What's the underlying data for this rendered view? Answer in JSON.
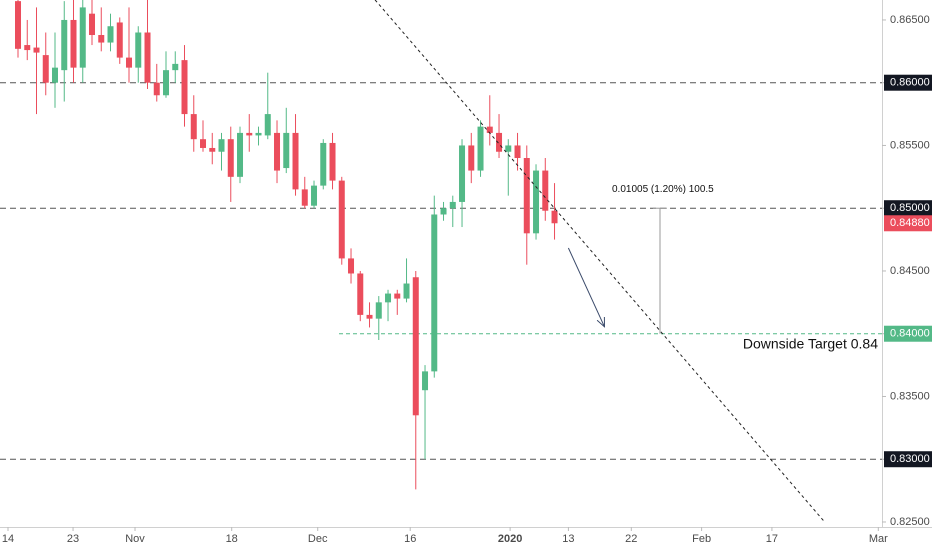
{
  "chart_data": {
    "type": "candlestick",
    "up_color": "#53b987",
    "down_color": "#eb4d5c",
    "xlim": [
      -1.946,
      93.4
    ],
    "ylim": [
      0.8246,
      0.86659
    ],
    "xticks": [
      {
        "value": -1.08,
        "label": "14"
      },
      {
        "value": 5.95,
        "label": "23"
      },
      {
        "value": 12.65,
        "label": "Nov"
      },
      {
        "value": 23.1,
        "label": "18"
      },
      {
        "value": 32.4,
        "label": "Dec"
      },
      {
        "value": 42.4,
        "label": "16"
      },
      {
        "value": 53.2,
        "label": "2020"
      },
      {
        "value": 59.5,
        "label": "13"
      },
      {
        "value": 66.3,
        "label": "22"
      },
      {
        "value": 73.9,
        "label": "Feb"
      },
      {
        "value": 81.5,
        "label": "17"
      },
      {
        "value": 93,
        "label": "Mar"
      }
    ],
    "yticks": [
      {
        "value": 0.865,
        "label": "0.86500"
      },
      {
        "value": 0.86,
        "label": "0.86000"
      },
      {
        "value": 0.855,
        "label": "0.85500"
      },
      {
        "value": 0.85,
        "label": "0.85000"
      },
      {
        "value": 0.845,
        "label": "0.84500"
      },
      {
        "value": 0.84,
        "label": "0.84000"
      },
      {
        "value": 0.835,
        "label": "0.83500"
      },
      {
        "value": 0.83,
        "label": "0.83000"
      },
      {
        "value": 0.825,
        "label": "0.82500"
      }
    ],
    "hlines": [
      0.86,
      0.85,
      0.83
    ],
    "last_price": {
      "value": 0.8488,
      "label": "0.84880"
    },
    "target": {
      "value": 0.84,
      "from": 34.7,
      "label": "Downside Target 0.84"
    },
    "trendline": {
      "x": [
        38.6,
        87.2
      ],
      "y": [
        0.8666,
        0.825
      ]
    },
    "arrow": {
      "x": [
        59.5,
        63.4
      ],
      "y": [
        0.84683,
        0.84055
      ]
    },
    "measure": {
      "x": 69.4,
      "y": [
        0.85,
        0.84
      ],
      "label": "0.01005 (1.20%) 100.5"
    },
    "candles": [
      [
        0.8665,
        0.868,
        0.862,
        0.8627
      ],
      [
        0.863,
        0.865,
        0.8618,
        0.8626
      ],
      [
        0.8628,
        0.866,
        0.8575,
        0.8624
      ],
      [
        0.8622,
        0.864,
        0.859,
        0.86
      ],
      [
        0.86,
        0.864,
        0.858,
        0.8612
      ],
      [
        0.861,
        0.8665,
        0.8585,
        0.865
      ],
      [
        0.865,
        0.867,
        0.86,
        0.8612
      ],
      [
        0.8612,
        0.868,
        0.86,
        0.866
      ],
      [
        0.8655,
        0.867,
        0.863,
        0.8638
      ],
      [
        0.8638,
        0.866,
        0.8625,
        0.8632
      ],
      [
        0.8632,
        0.8655,
        0.8625,
        0.8645
      ],
      [
        0.8648,
        0.8652,
        0.8615,
        0.862
      ],
      [
        0.862,
        0.866,
        0.86,
        0.8612
      ],
      [
        0.8612,
        0.8645,
        0.86,
        0.864
      ],
      [
        0.864,
        0.868,
        0.8595,
        0.86
      ],
      [
        0.86,
        0.8615,
        0.8585,
        0.859
      ],
      [
        0.859,
        0.8625,
        0.8588,
        0.861
      ],
      [
        0.861,
        0.8625,
        0.86,
        0.8615
      ],
      [
        0.8618,
        0.863,
        0.8565,
        0.8575
      ],
      [
        0.8575,
        0.859,
        0.8545,
        0.8555
      ],
      [
        0.8555,
        0.857,
        0.8545,
        0.8548
      ],
      [
        0.8548,
        0.856,
        0.8535,
        0.8545
      ],
      [
        0.8545,
        0.856,
        0.853,
        0.8555
      ],
      [
        0.8555,
        0.8565,
        0.8505,
        0.8525
      ],
      [
        0.8525,
        0.8565,
        0.852,
        0.856
      ],
      [
        0.856,
        0.8575,
        0.8545,
        0.8558
      ],
      [
        0.8558,
        0.8565,
        0.855,
        0.856
      ],
      [
        0.8558,
        0.8608,
        0.8555,
        0.8575
      ],
      [
        0.856,
        0.857,
        0.852,
        0.853
      ],
      [
        0.8532,
        0.858,
        0.8528,
        0.856
      ],
      [
        0.856,
        0.8575,
        0.851,
        0.8515
      ],
      [
        0.8515,
        0.8525,
        0.85,
        0.8502
      ],
      [
        0.8502,
        0.8522,
        0.85,
        0.8518
      ],
      [
        0.8518,
        0.8555,
        0.8515,
        0.8552
      ],
      [
        0.8552,
        0.856,
        0.8515,
        0.8522
      ],
      [
        0.8522,
        0.8525,
        0.8455,
        0.846
      ],
      [
        0.846,
        0.8468,
        0.844,
        0.8448
      ],
      [
        0.8448,
        0.845,
        0.841,
        0.8415
      ],
      [
        0.8415,
        0.8425,
        0.8405,
        0.8412
      ],
      [
        0.8412,
        0.843,
        0.8395,
        0.8425
      ],
      [
        0.8425,
        0.8435,
        0.841,
        0.8432
      ],
      [
        0.8432,
        0.8435,
        0.8415,
        0.8428
      ],
      [
        0.8428,
        0.846,
        0.8425,
        0.844
      ],
      [
        0.8445,
        0.845,
        0.8276,
        0.8335
      ],
      [
        0.8355,
        0.8375,
        0.83,
        0.837
      ],
      [
        0.837,
        0.851,
        0.8365,
        0.8495
      ],
      [
        0.8495,
        0.8505,
        0.849,
        0.85
      ],
      [
        0.85,
        0.851,
        0.8485,
        0.8505
      ],
      [
        0.8505,
        0.8555,
        0.8485,
        0.855
      ],
      [
        0.855,
        0.856,
        0.852,
        0.853
      ],
      [
        0.853,
        0.857,
        0.8525,
        0.8565
      ],
      [
        0.8565,
        0.859,
        0.855,
        0.856
      ],
      [
        0.856,
        0.8575,
        0.854,
        0.8545
      ],
      [
        0.8545,
        0.8555,
        0.851,
        0.855
      ],
      [
        0.855,
        0.856,
        0.853,
        0.854
      ],
      [
        0.854,
        0.855,
        0.8455,
        0.848
      ],
      [
        0.848,
        0.8535,
        0.8475,
        0.853
      ],
      [
        0.853,
        0.854,
        0.849,
        0.8498
      ],
      [
        0.8498,
        0.852,
        0.8475,
        0.8488
      ]
    ]
  }
}
